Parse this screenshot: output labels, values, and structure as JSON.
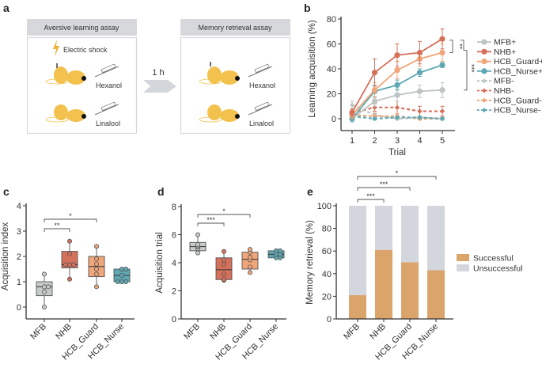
{
  "panel_labels": {
    "a": "a",
    "b": "b",
    "c": "c",
    "d": "d",
    "e": "e"
  },
  "panel_a": {
    "box1_title": "Aversive learning assay",
    "shock_label": "Electric shock",
    "odor1": "Hexanol",
    "odor2": "Linalool",
    "arrow_label": "1 h",
    "box2_title": "Memory retrieval assay",
    "colors": {
      "bee": "#f2c14e",
      "header": "#d6d8dc",
      "arrow": "#d3d6da",
      "shock": "#f2b134"
    }
  },
  "chart_data": [
    {
      "panel": "b",
      "type": "line",
      "xlabel": "Trial",
      "ylabel": "Learning acquisition (%)",
      "x": [
        1,
        2,
        3,
        4,
        5
      ],
      "ylim": [
        0,
        80
      ],
      "yticks": [
        0,
        20,
        40,
        60,
        80
      ],
      "legend_position": "right",
      "series": [
        {
          "name": "MFB+",
          "color": "#bcc5c3",
          "dashed": false,
          "marker": "circle",
          "values": [
            0,
            14,
            19,
            22,
            23
          ],
          "err": [
            3,
            4,
            5,
            5,
            6
          ]
        },
        {
          "name": "NHB+",
          "color": "#d5705a",
          "dashed": false,
          "marker": "circle",
          "values": [
            5,
            37,
            51,
            53,
            64
          ],
          "err": [
            3,
            11,
            9,
            9,
            8
          ]
        },
        {
          "name": "HCB_Guard+",
          "color": "#f0a679",
          "dashed": false,
          "marker": "circle",
          "values": [
            3,
            23,
            39,
            48,
            53
          ],
          "err": [
            3,
            6,
            7,
            6,
            7
          ]
        },
        {
          "name": "HCB_Nurse+",
          "color": "#5fa8b3",
          "dashed": false,
          "marker": "circle",
          "values": [
            0,
            22,
            27,
            37,
            43
          ],
          "err": [
            2,
            5,
            4,
            3,
            2
          ]
        },
        {
          "name": "MFB-",
          "color": "#bcc5c3",
          "dashed": true,
          "marker": "diamond",
          "values": [
            11,
            3,
            0,
            1,
            0
          ],
          "err": [
            3,
            2,
            1,
            1,
            1
          ]
        },
        {
          "name": "NHB-",
          "color": "#d5705a",
          "dashed": true,
          "marker": "diamond",
          "values": [
            5,
            9,
            9,
            6,
            6
          ],
          "err": [
            2,
            3,
            5,
            4,
            4
          ]
        },
        {
          "name": "HCB_Guard-",
          "color": "#f0a679",
          "dashed": true,
          "marker": "diamond",
          "values": [
            3,
            2,
            2,
            0,
            0
          ],
          "err": [
            2,
            2,
            2,
            1,
            1
          ]
        },
        {
          "name": "HCB_Nurse-",
          "color": "#5fa8b3",
          "dashed": true,
          "marker": "diamond",
          "values": [
            2,
            0,
            1,
            1,
            0
          ],
          "err": [
            1,
            1,
            1,
            1,
            1
          ]
        }
      ],
      "significance": [
        {
          "between": [
            "NHB+",
            "HCB_Guard+"
          ],
          "label": "**"
        },
        {
          "between": [
            "NHB+",
            "MFB+"
          ],
          "label": "***"
        }
      ]
    },
    {
      "panel": "c",
      "type": "box",
      "ylabel": "Acquisition index",
      "ylim": [
        0,
        4
      ],
      "yticks": [
        0,
        1,
        2,
        3,
        4
      ],
      "categories": [
        "MFB",
        "NHB",
        "HCB_Guard",
        "HCB_Nurse"
      ],
      "colors": [
        "#c5cbc9",
        "#d5705a",
        "#f0a679",
        "#5fa8b3"
      ],
      "boxes": [
        {
          "min": 0,
          "q1": 0.45,
          "median": 0.8,
          "q3": 1.0,
          "max": 1.3,
          "points": [
            0,
            0.6,
            0.8,
            0.8,
            1.3
          ]
        },
        {
          "min": 1.1,
          "q1": 1.55,
          "median": 1.67,
          "q3": 2.2,
          "max": 2.6,
          "points": [
            1.1,
            1.67,
            1.67,
            1.67,
            2.1,
            2.6
          ]
        },
        {
          "min": 0.8,
          "q1": 1.2,
          "median": 1.6,
          "q3": 2.0,
          "max": 2.4,
          "points": [
            0.8,
            1.3,
            1.5,
            1.7,
            1.9,
            2.4
          ]
        },
        {
          "min": 1.0,
          "q1": 1.0,
          "median": 1.25,
          "q3": 1.5,
          "max": 1.5,
          "points": [
            1.0,
            1.0,
            1.0,
            1.25,
            1.5,
            1.5
          ]
        }
      ],
      "significance": [
        {
          "between": [
            "MFB",
            "NHB"
          ],
          "label": "**"
        },
        {
          "between": [
            "MFB",
            "HCB_Guard"
          ],
          "label": "*"
        }
      ]
    },
    {
      "panel": "d",
      "type": "box",
      "ylabel": "Acquisition trial",
      "ylim": [
        0,
        8
      ],
      "yticks": [
        0,
        2,
        4,
        6,
        8
      ],
      "categories": [
        "MFB",
        "NHB",
        "HCB_Guard",
        "HCB_Nurse"
      ],
      "colors": [
        "#c5cbc9",
        "#d5705a",
        "#f0a679",
        "#5fa8b3"
      ],
      "boxes": [
        {
          "min": 4.7,
          "q1": 4.85,
          "median": 5.15,
          "q3": 5.45,
          "max": 6.0,
          "points": [
            4.7,
            5.0,
            5.15,
            5.2,
            5.3,
            6.0
          ]
        },
        {
          "min": 2.75,
          "q1": 2.8,
          "median": 3.5,
          "q3": 4.35,
          "max": 4.8,
          "points": [
            2.75,
            2.8,
            3.2,
            3.9,
            4.2,
            4.8
          ]
        },
        {
          "min": 3.3,
          "q1": 3.55,
          "median": 4.25,
          "q3": 4.75,
          "max": 4.95,
          "points": [
            3.3,
            3.7,
            4.2,
            4.4,
            4.75,
            4.95
          ]
        },
        {
          "min": 4.35,
          "q1": 4.35,
          "median": 4.6,
          "q3": 4.85,
          "max": 4.85,
          "points": [
            4.35,
            4.35,
            4.6,
            4.6,
            4.85,
            4.85
          ]
        }
      ],
      "significance": [
        {
          "between": [
            "MFB",
            "NHB"
          ],
          "label": "***"
        },
        {
          "between": [
            "MFB",
            "HCB_Guard"
          ],
          "label": "*"
        }
      ]
    },
    {
      "panel": "e",
      "type": "bar",
      "stacked": true,
      "ylabel": "Memory retrieval (%)",
      "ylim": [
        0,
        100
      ],
      "yticks": [
        0,
        20,
        40,
        60,
        80,
        100
      ],
      "categories": [
        "MFB",
        "NHB",
        "HCB_Guard",
        "HCB_Nurse"
      ],
      "legend_position": "right",
      "series": [
        {
          "name": "Successful",
          "color": "#dba46b",
          "values": [
            21,
            61,
            50,
            43
          ]
        },
        {
          "name": "Unsuccessful",
          "color": "#d3d6dd",
          "values": [
            79,
            39,
            50,
            57
          ]
        }
      ],
      "significance": [
        {
          "between": [
            "MFB",
            "NHB"
          ],
          "label": "***"
        },
        {
          "between": [
            "MFB",
            "HCB_Guard"
          ],
          "label": "***"
        },
        {
          "between": [
            "MFB",
            "HCB_Nurse"
          ],
          "label": "*"
        }
      ]
    }
  ]
}
